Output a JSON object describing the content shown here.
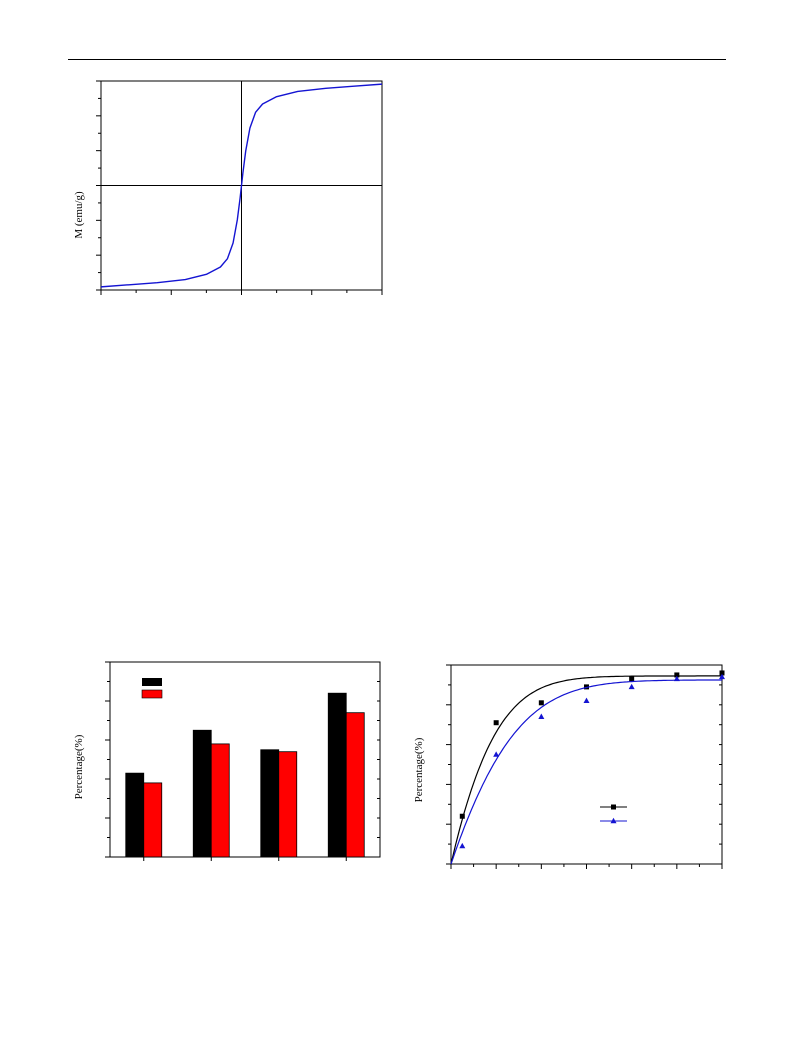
{
  "figures": {
    "hysteresis": {
      "ylabel": "M (emu/g)"
    },
    "bar_chart": {
      "ylabel": "Percentage(%)"
    },
    "kinetics": {
      "ylabel": "Percentage(%)"
    }
  },
  "colors": {
    "blue": "#1414d2",
    "black": "#000000",
    "red": "#ff0000"
  },
  "chart_data": [
    {
      "type": "line",
      "xlabel": "",
      "ylabel": "M (emu/g)",
      "xlim": [
        -1,
        1
      ],
      "ylim": [
        -1,
        1
      ],
      "series": [
        {
          "x": [
            -1.0,
            -0.8,
            -0.6,
            -0.4,
            -0.25,
            -0.15,
            -0.1,
            -0.06,
            -0.03,
            -0.01,
            0.0,
            0.01,
            0.03,
            0.06,
            0.1,
            0.15,
            0.25,
            0.4,
            0.6,
            0.8,
            1.0
          ],
          "y": [
            -0.97,
            -0.95,
            -0.93,
            -0.9,
            -0.85,
            -0.78,
            -0.7,
            -0.55,
            -0.33,
            -0.12,
            0.0,
            0.12,
            0.33,
            0.55,
            0.7,
            0.78,
            0.85,
            0.9,
            0.93,
            0.95,
            0.97
          ]
        }
      ]
    },
    {
      "type": "bar",
      "ylabel": "Percentage(%)",
      "ylim": [
        0,
        100
      ],
      "categories": [
        "",
        "",
        "",
        ""
      ],
      "series": [
        {
          "values": [
            43,
            65,
            55,
            84
          ]
        },
        {
          "values": [
            38,
            58,
            54,
            74
          ]
        }
      ]
    },
    {
      "type": "scatter",
      "ylabel": "Percentage(%)",
      "xlim": [
        0,
        120
      ],
      "ylim": [
        0,
        100
      ],
      "series": [
        {
          "x": [
            0,
            5,
            20,
            40,
            60,
            80,
            100,
            120
          ],
          "y": [
            0,
            24,
            71,
            81,
            89,
            93,
            95,
            96
          ]
        },
        {
          "x": [
            0,
            5,
            20,
            40,
            60,
            80,
            100,
            120
          ],
          "y": [
            0,
            9,
            55,
            74,
            82,
            89,
            93,
            94
          ]
        }
      ]
    }
  ]
}
